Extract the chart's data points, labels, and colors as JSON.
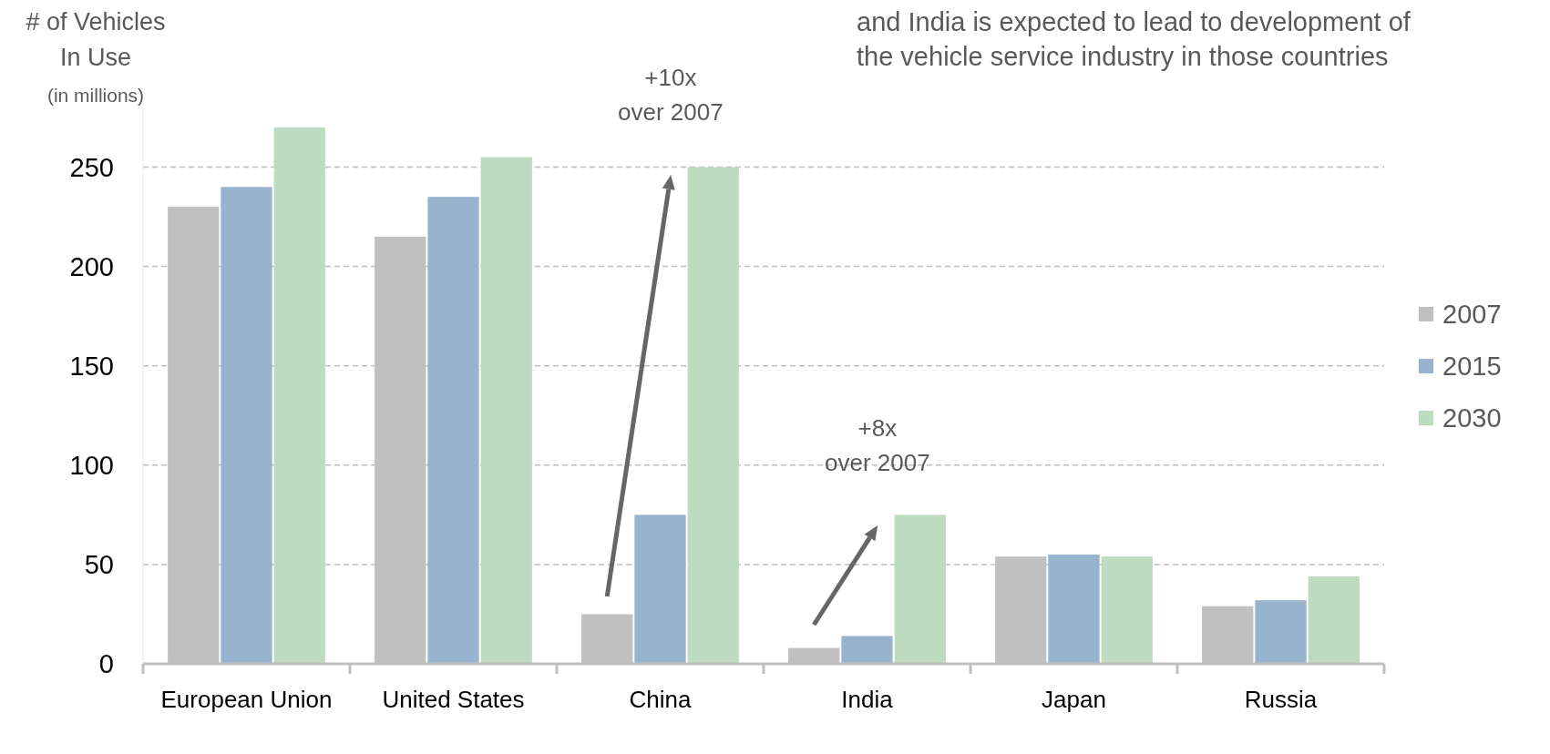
{
  "chart_data": {
    "type": "bar",
    "ylabel": "# of Vehicles\nIn Use\n(in millions)",
    "categories": [
      "European Union",
      "United States",
      "China",
      "India",
      "Japan",
      "Russia"
    ],
    "series": [
      {
        "name": "2007",
        "color": "#c0c0c0",
        "values": [
          230,
          215,
          25,
          8,
          54,
          29
        ]
      },
      {
        "name": "2015",
        "color": "#98b3cd",
        "values": [
          240,
          235,
          75,
          14,
          55,
          32
        ]
      },
      {
        "name": "2030",
        "color": "#bcdbc0",
        "values": [
          270,
          255,
          250,
          75,
          54,
          44
        ]
      }
    ],
    "ylim": [
      0,
      280
    ],
    "yticks": [
      0,
      50,
      100,
      150,
      200,
      250
    ],
    "grid": "y",
    "legend": "right",
    "annotations": [
      "+10x\nover 2007",
      "+8x\nover 2007",
      "and India is expected to lead to development of\nthe vehicle service industry in those countries"
    ]
  }
}
